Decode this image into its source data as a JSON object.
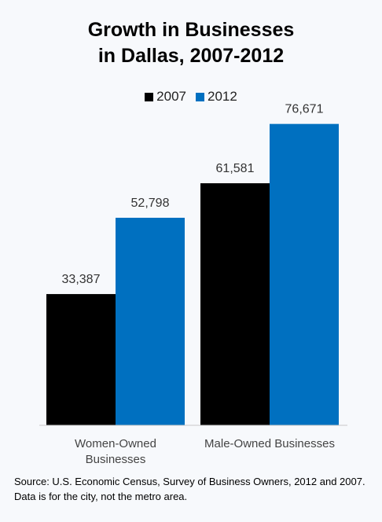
{
  "chart_data": {
    "type": "bar",
    "title_line1": "Growth in Businesses",
    "title_line2": "in Dallas, 2007-2012",
    "categories": [
      {
        "line1": "Women-Owned",
        "line2": "Businesses"
      },
      {
        "line1": "Male-Owned Businesses",
        "line2": ""
      }
    ],
    "series": [
      {
        "name": "2007",
        "color": "#000000",
        "values": [
          33387,
          61581
        ],
        "labels": [
          "33,387",
          "61,581"
        ]
      },
      {
        "name": "2012",
        "color": "#0070c0",
        "values": [
          52798,
          76671
        ],
        "labels": [
          "52,798",
          "76,671"
        ]
      }
    ],
    "ylim": [
      0,
      100000
    ],
    "grid": false,
    "legend_position": "top"
  },
  "source_note": "Source: U.S. Economic Census, Survey of Business Owners, 2012 and 2007. Data is for the city, not the metro area."
}
